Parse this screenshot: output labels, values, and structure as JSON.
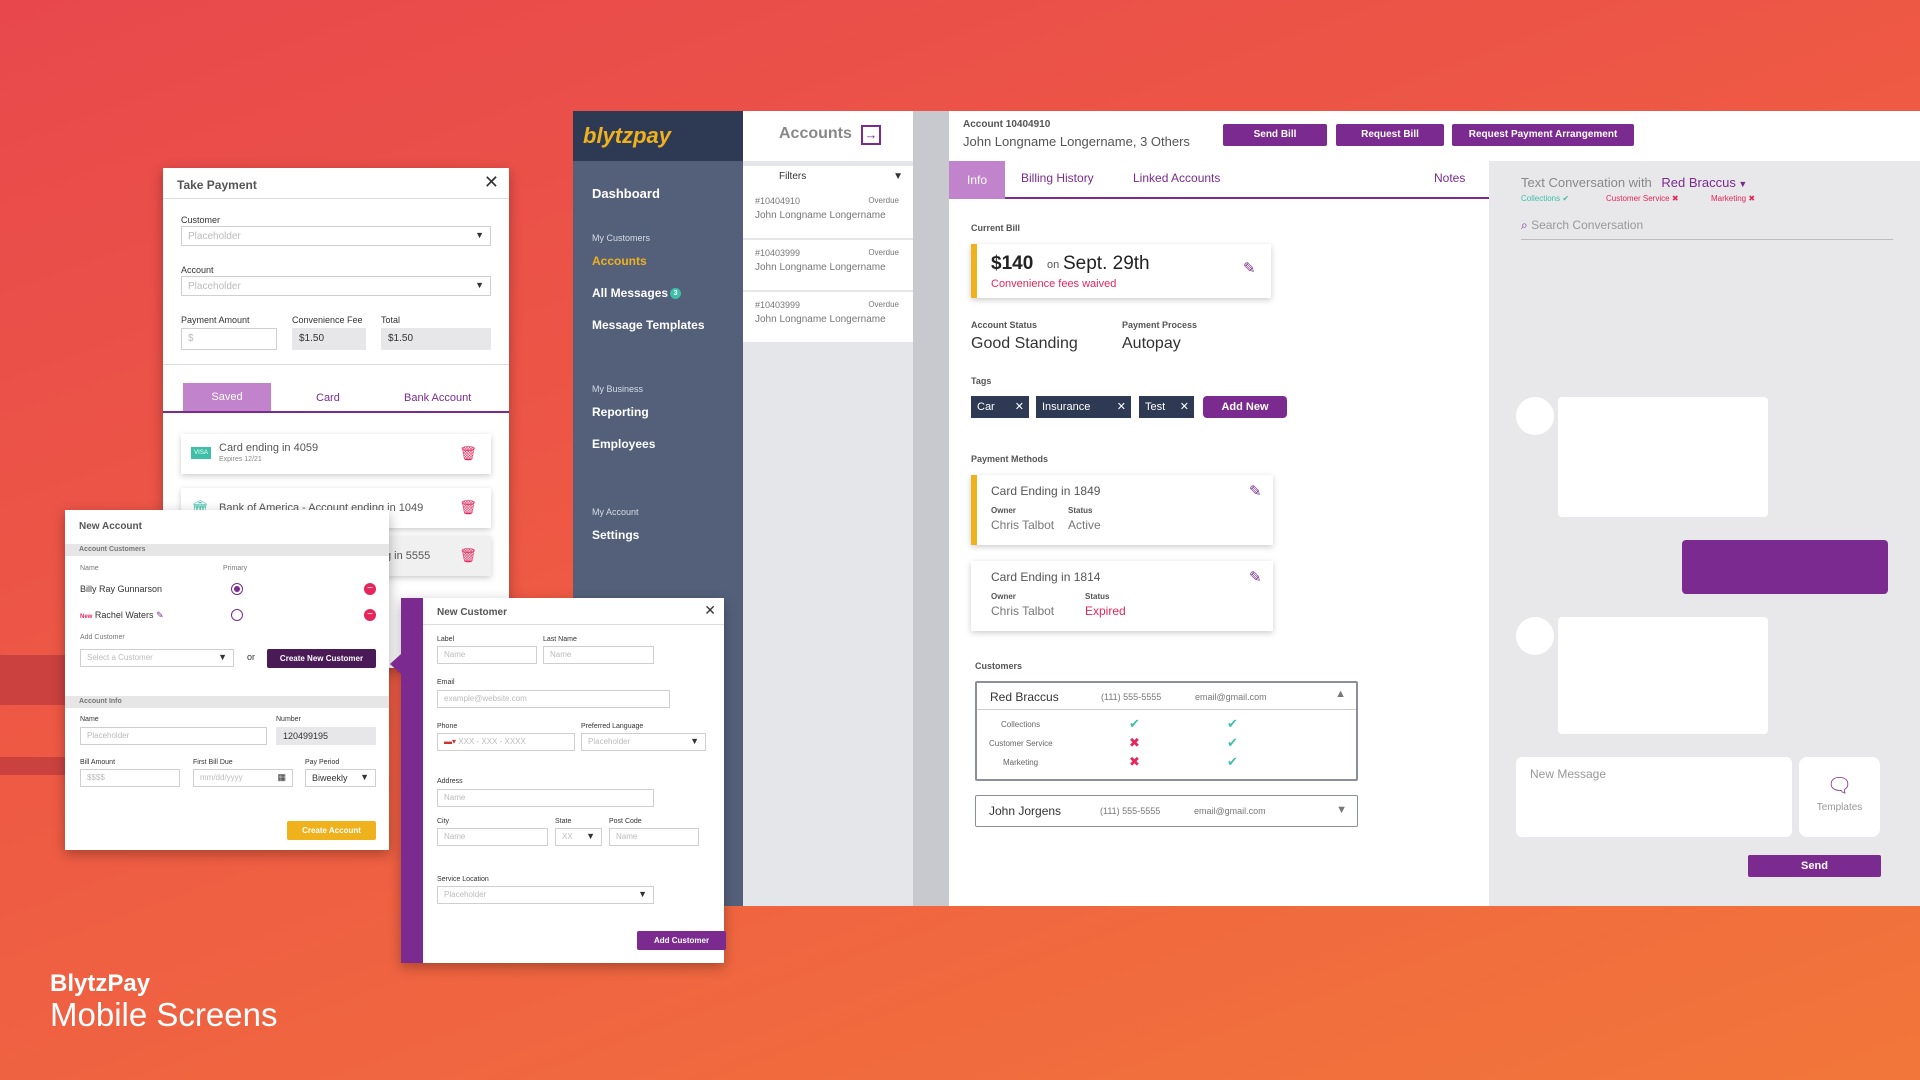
{
  "footer": {
    "brand": "BlytzPay",
    "subtitle": "Mobile Screens"
  },
  "sidebar": {
    "logo": "blytzpay",
    "items": [
      {
        "label": "Dashboard"
      },
      {
        "section": "My Customers"
      },
      {
        "label": "Accounts"
      },
      {
        "label": "All Messages",
        "badge": "3"
      },
      {
        "label": "Message Templates"
      },
      {
        "section": "My Business"
      },
      {
        "label": "Reporting"
      },
      {
        "label": "Employees"
      },
      {
        "section": "My Account"
      },
      {
        "label": "Settings"
      }
    ]
  },
  "accounts_panel": {
    "title": "Accounts",
    "filters": "Filters",
    "list": [
      {
        "id": "#10404910",
        "status": "Overdue",
        "name": "John Longname Longername"
      },
      {
        "id": "#10403999",
        "status": "Overdue",
        "name": "John Longname Longername"
      },
      {
        "id": "#10403999",
        "status": "Overdue",
        "name": "John Longname Longername"
      }
    ]
  },
  "topbar": {
    "account": "Account 10404910",
    "names": "John Longname Longername, 3 Others",
    "send_bill": "Send Bill",
    "request_bill": "Request Bill",
    "request_arrangement": "Request Payment Arrangement"
  },
  "tabs": {
    "info": "Info",
    "billing": "Billing History",
    "linked": "Linked Accounts",
    "notes": "Notes"
  },
  "info": {
    "current_bill_label": "Current Bill",
    "amount": "$140",
    "on": "on",
    "date": "Sept. 29th",
    "fee_note": "Convenience fees waived",
    "account_status_label": "Account Status",
    "account_status": "Good Standing",
    "payment_process_label": "Payment Process",
    "payment_process": "Autopay",
    "tags_label": "Tags",
    "tags": [
      "Car",
      "Insurance",
      "Test"
    ],
    "add_new": "Add New",
    "payment_methods_label": "Payment Methods",
    "methods": [
      {
        "title": "Card Ending in 1849",
        "owner_label": "Owner",
        "owner": "Chris Talbot",
        "status_label": "Status",
        "status": "Active"
      },
      {
        "title": "Card Ending in 1814",
        "owner_label": "Owner",
        "owner": "Chris Talbot",
        "status_label": "Status",
        "status": "Expired"
      }
    ],
    "customers_label": "Customers",
    "customers": [
      {
        "name": "Red Braccus",
        "phone": "(111) 555-5555",
        "email": "email@gmail.com"
      },
      {
        "name": "John Jorgens",
        "phone": "(111) 555-5555",
        "email": "email@gmail.com"
      }
    ],
    "prefs": [
      "Collections",
      "Customer Service",
      "Marketing"
    ]
  },
  "conversation": {
    "title": "Text Conversation with",
    "who": "Red Braccus",
    "flags": [
      {
        "label": "Collections",
        "ok": true
      },
      {
        "label": "Customer Service",
        "ok": false
      },
      {
        "label": "Marketing",
        "ok": false
      }
    ],
    "search_placeholder": "Search Conversation",
    "new_message_placeholder": "New Message",
    "templates": "Templates",
    "send": "Send"
  },
  "take_payment": {
    "title": "Take Payment",
    "customer_label": "Customer",
    "customer_placeholder": "Placeholder",
    "account_label": "Account",
    "account_placeholder": "Placeholder",
    "amount_label": "Payment Amount",
    "amount_placeholder": "$",
    "fee_label": "Convenience Fee",
    "fee": "$1.50",
    "total_label": "Total",
    "total": "$1.50",
    "tabs": [
      "Saved",
      "Card",
      "Bank Account"
    ],
    "saved": [
      {
        "label": "Card ending in 4059",
        "sub": "Expires 12/21",
        "icon": "VISA"
      },
      {
        "label": "Bank of America - Account ending in 1049"
      },
      {
        "label": "g in 5555"
      }
    ]
  },
  "new_account": {
    "title": "New Account",
    "customers_section": "Account Customers",
    "col_name": "Name",
    "col_primary": "Primary",
    "rows": [
      {
        "name": "Billy Ray Gunnarson"
      },
      {
        "new": "New",
        "name": "Rachel Waters"
      }
    ],
    "add_customer_label": "Add Customer",
    "select_placeholder": "Select a Customer",
    "or": "or",
    "create_new": "Create New Customer",
    "info_section": "Account Info",
    "name_label": "Name",
    "name_placeholder": "Placeholder",
    "number_label": "Number",
    "number": "120499195",
    "bill_amount_label": "Bill Amount",
    "bill_amount_placeholder": "$$$$",
    "first_due_label": "First Bill Due",
    "first_due_placeholder": "mm/dd/yyyy",
    "pay_period_label": "Pay Period",
    "pay_period": "Biweekly",
    "create": "Create Account"
  },
  "new_customer": {
    "title": "New Customer",
    "label_label": "Label",
    "label_placeholder": "Name",
    "last_label": "Last Name",
    "last_placeholder": "Name",
    "email_label": "Email",
    "email_placeholder": "example@website.com",
    "phone_label": "Phone",
    "phone_placeholder": "XXX - XXX - XXXX",
    "lang_label": "Preferred Language",
    "lang_placeholder": "Placeholder",
    "address_label": "Address",
    "address_placeholder": "Name",
    "city_label": "City",
    "city_placeholder": "Name",
    "state_label": "State",
    "state_placeholder": "XX",
    "post_label": "Post Code",
    "post_placeholder": "Name",
    "service_label": "Service Location",
    "service_placeholder": "Placeholder",
    "add": "Add Customer"
  },
  "colors": {
    "purple": "#7b2a8f",
    "yellow": "#f0b21c",
    "navy": "#2e3a54",
    "slate": "#54607a",
    "teal": "#3dbfa8",
    "red": "#e6265b"
  }
}
